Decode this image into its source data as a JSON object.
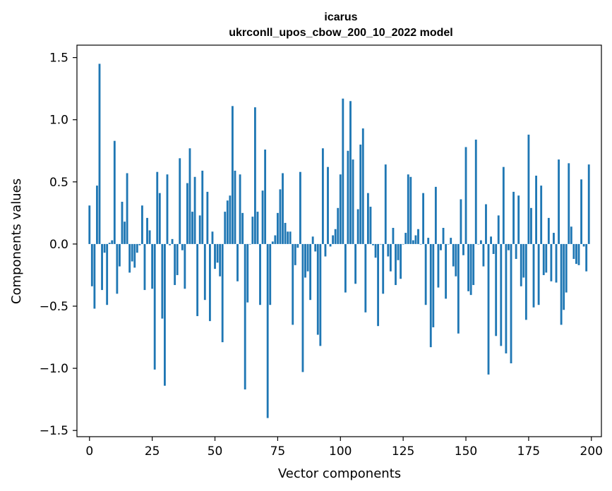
{
  "chart_data": {
    "type": "bar",
    "title_line1": "icarus",
    "title_line2": "ukrconll_upos_cbow_200_10_2022 model",
    "xlabel": "Vector components",
    "ylabel": "Components values",
    "xlim": [
      -5,
      204
    ],
    "ylim": [
      -1.55,
      1.6
    ],
    "xticks": [
      0,
      25,
      50,
      75,
      100,
      125,
      150,
      175,
      200
    ],
    "xtick_labels": [
      "0",
      "25",
      "50",
      "75",
      "100",
      "125",
      "150",
      "175",
      "200"
    ],
    "yticks": [
      1.5,
      1.0,
      0.5,
      0.0,
      -0.5,
      -1.0,
      -1.5
    ],
    "ytick_labels": [
      "1.5",
      "1.0",
      "0.5",
      "0.0",
      "−0.5",
      "−1.0",
      "−1.5"
    ],
    "bar_color": "#1f77b4",
    "values": [
      0.31,
      -0.34,
      -0.52,
      0.47,
      1.45,
      -0.37,
      -0.07,
      -0.49,
      0.01,
      0.03,
      0.83,
      -0.4,
      -0.18,
      0.34,
      0.18,
      0.57,
      -0.23,
      -0.14,
      -0.19,
      -0.07,
      -0.01,
      0.31,
      -0.37,
      0.21,
      0.11,
      -0.36,
      -1.01,
      0.58,
      0.41,
      -0.6,
      -1.14,
      0.56,
      -0.01,
      0.04,
      -0.33,
      -0.25,
      0.69,
      -0.05,
      -0.36,
      0.49,
      0.77,
      0.26,
      0.54,
      -0.58,
      0.23,
      0.59,
      -0.45,
      0.42,
      -0.62,
      0.1,
      -0.2,
      -0.15,
      -0.26,
      -0.79,
      0.26,
      0.35,
      0.39,
      1.11,
      0.59,
      -0.3,
      0.56,
      0.25,
      -1.17,
      -0.47,
      0.0,
      0.22,
      1.1,
      0.26,
      -0.49,
      0.43,
      0.76,
      -1.4,
      -0.49,
      0.02,
      0.07,
      0.25,
      0.44,
      0.57,
      0.17,
      0.1,
      0.1,
      -0.65,
      -0.17,
      -0.03,
      0.58,
      -1.03,
      -0.27,
      -0.22,
      -0.45,
      0.06,
      -0.06,
      -0.73,
      -0.82,
      0.77,
      -0.1,
      0.62,
      -0.02,
      0.07,
      0.12,
      0.29,
      0.56,
      1.17,
      -0.39,
      0.75,
      1.15,
      0.68,
      -0.32,
      0.28,
      0.8,
      0.93,
      -0.55,
      0.41,
      0.3,
      -0.01,
      -0.11,
      -0.66,
      0.0,
      -0.4,
      0.64,
      -0.1,
      -0.22,
      0.13,
      -0.33,
      -0.13,
      -0.28,
      0.0,
      0.09,
      0.56,
      0.54,
      0.03,
      0.07,
      0.12,
      0.0,
      0.41,
      -0.49,
      0.05,
      -0.83,
      -0.67,
      0.46,
      -0.35,
      -0.05,
      0.13,
      -0.44,
      0.0,
      0.05,
      -0.18,
      -0.26,
      -0.72,
      0.36,
      -0.09,
      0.78,
      -0.38,
      -0.41,
      -0.33,
      0.84,
      0.0,
      0.03,
      -0.18,
      0.32,
      -1.05,
      0.06,
      -0.08,
      -0.74,
      0.23,
      -0.82,
      0.62,
      -0.88,
      -0.05,
      -0.96,
      0.42,
      -0.12,
      0.39,
      -0.34,
      -0.27,
      -0.61,
      0.88,
      0.29,
      -0.51,
      0.55,
      -0.49,
      0.47,
      -0.25,
      -0.23,
      0.21,
      -0.3,
      0.09,
      -0.31,
      0.68,
      -0.65,
      -0.53,
      -0.39,
      0.65,
      0.14,
      -0.12,
      -0.16,
      -0.17,
      0.52,
      -0.02,
      -0.22,
      0.64
    ]
  }
}
